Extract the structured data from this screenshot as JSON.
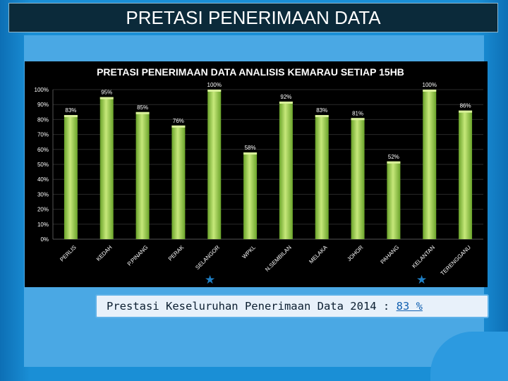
{
  "page_title": "PRETASI PENERIMAAN DATA",
  "footer": {
    "label": "Prestasi Keseluruhan Penerimaan Data 2014 :",
    "value": "83 %"
  },
  "colors": {
    "bar": "#8cc43c",
    "bar_highlight": "#c6e87a",
    "chart_bg": "#000000",
    "grid": "#2a2a2a"
  },
  "icons": [
    "star-icon",
    "star-icon"
  ],
  "chart_data": {
    "type": "bar",
    "title": "PRETASI PENERIMAAN DATA ANALISIS KEMARAU SETIAP 15HB",
    "categories": [
      "PERLIS",
      "KEDAH",
      "P.PINANG",
      "PERAK",
      "SELANGOR",
      "WPKL",
      "N.SEMBILAN",
      "MELAKA",
      "JOHOR",
      "PAHANG",
      "KELANTAN",
      "TERENGGANU"
    ],
    "values": [
      83,
      95,
      85,
      76,
      100,
      58,
      92,
      83,
      81,
      52,
      100,
      86
    ],
    "data_labels": [
      "83%",
      "95%",
      "85%",
      "76%",
      "100%",
      "58%",
      "92%",
      "83%",
      "81%",
      "52%",
      "100%",
      "86%"
    ],
    "yticks": [
      "0%",
      "10%",
      "20%",
      "30%",
      "40%",
      "50%",
      "60%",
      "70%",
      "80%",
      "90%",
      "100%"
    ],
    "ylim": [
      0,
      100
    ],
    "xlabel": "",
    "ylabel": "",
    "grid": true
  }
}
